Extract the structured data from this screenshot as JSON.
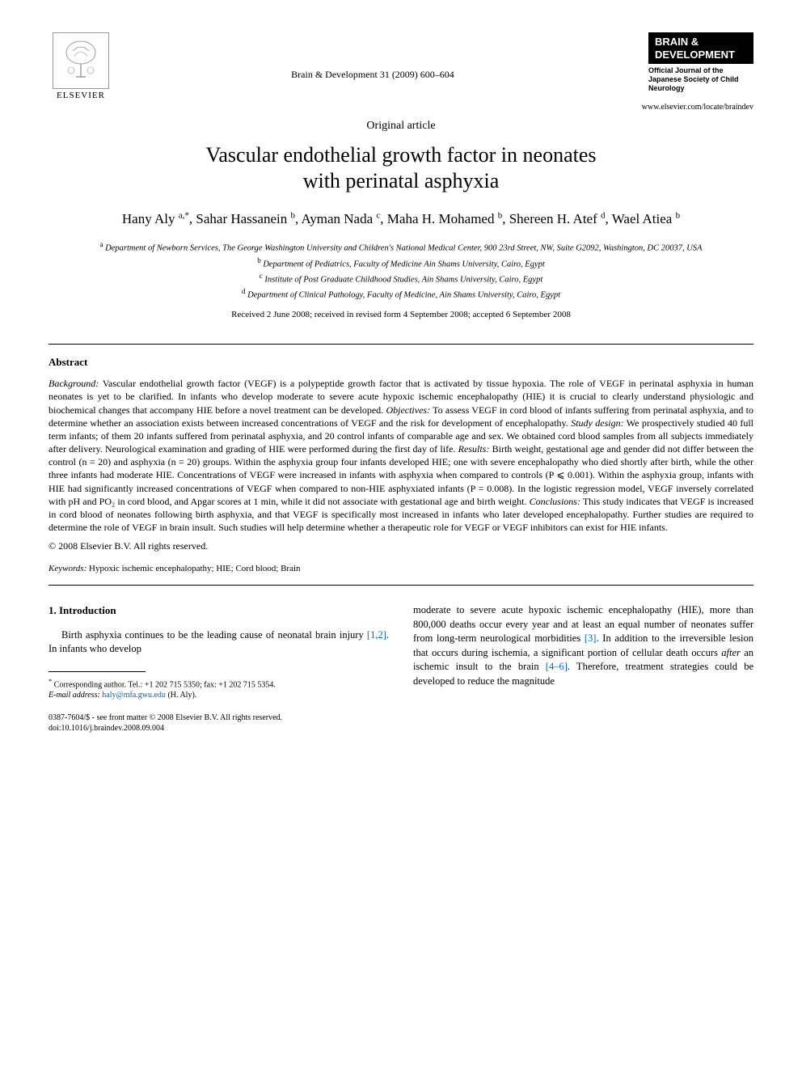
{
  "header": {
    "publisher_name": "ELSEVIER",
    "publisher_logo_alt": "Elsevier tree logo",
    "citation": "Brain & Development 31 (2009) 600–604",
    "journal_badge_line1": "BRAIN &",
    "journal_badge_line2": "DEVELOPMENT",
    "journal_subtitle": "Official Journal of the Japanese Society of Child Neurology",
    "journal_url": "www.elsevier.com/locate/braindev"
  },
  "article": {
    "type": "Original article",
    "title_line1": "Vascular endothelial growth factor in neonates",
    "title_line2": "with perinatal asphyxia",
    "authors_html": "Hany Aly <sup>a,*</sup>, Sahar Hassanein <sup>b</sup>, Ayman Nada <sup>c</sup>, Maha H. Mohamed <sup>b</sup>, Shereen H. Atef <sup>d</sup>, Wael Atiea <sup>b</sup>",
    "affiliations": [
      {
        "sup": "a",
        "text": "Department of Newborn Services, The George Washington University and Children's National Medical Center, 900 23rd Street, NW, Suite G2092, Washington, DC 20037, USA"
      },
      {
        "sup": "b",
        "text": "Department of Pediatrics, Faculty of Medicine Ain Shams University, Cairo, Egypt"
      },
      {
        "sup": "c",
        "text": "Institute of Post Graduate Childhood Studies, Ain Shams University, Cairo, Egypt"
      },
      {
        "sup": "d",
        "text": "Department of Clinical Pathology, Faculty of Medicine, Ain Shams University, Cairo, Egypt"
      }
    ],
    "dates": "Received 2 June 2008; received in revised form 4 September 2008; accepted 6 September 2008"
  },
  "abstract": {
    "heading": "Abstract",
    "sections": [
      {
        "label": "Background:",
        "text": " Vascular endothelial growth factor (VEGF) is a polypeptide growth factor that is activated by tissue hypoxia. The role of VEGF in perinatal asphyxia in human neonates is yet to be clarified. In infants who develop moderate to severe acute hypoxic ischemic encephalopathy (HIE) it is crucial to clearly understand physiologic and biochemical changes that accompany HIE before a novel treatment can be developed. "
      },
      {
        "label": "Objectives:",
        "text": " To assess VEGF in cord blood of infants suffering from perinatal asphyxia, and to determine whether an association exists between increased concentrations of VEGF and the risk for development of encephalopathy. "
      },
      {
        "label": "Study design:",
        "text": " We prospectively studied 40 full term infants; of them 20 infants suffered from perinatal asphyxia, and 20 control infants of comparable age and sex. We obtained cord blood samples from all subjects immediately after delivery. Neurological examination and grading of HIE were performed during the first day of life. "
      },
      {
        "label": "Results:",
        "text": " Birth weight, gestational age and gender did not differ between the control (n = 20) and asphyxia (n = 20) groups. Within the asphyxia group four infants developed HIE; one with severe encephalopathy who died shortly after birth, while the other three infants had moderate HIE. Concentrations of VEGF were increased in infants with asphyxia when compared to controls (P ⩽ 0.001). Within the asphyxia group, infants with HIE had significantly increased concentrations of VEGF when compared to non-HIE asphyxiated infants (P = 0.008). In the logistic regression model, VEGF inversely correlated with pH and PO₂ in cord blood, and Apgar scores at 1 min, while it did not associate with gestational age and birth weight. "
      },
      {
        "label": "Conclusions:",
        "text": " This study indicates that VEGF is increased in cord blood of neonates following birth asphyxia, and that VEGF is specifically most increased in infants who later developed encephalopathy. Further studies are required to determine the role of VEGF in brain insult. Such studies will help determine whether a therapeutic role for VEGF or VEGF inhibitors can exist for HIE infants."
      }
    ],
    "copyright": "© 2008 Elsevier B.V. All rights reserved.",
    "keywords_label": "Keywords:",
    "keywords": " Hypoxic ischemic encephalopathy; HIE; Cord blood; Brain"
  },
  "body": {
    "section_heading": "1. Introduction",
    "col1_para": "Birth asphyxia continues to be the leading cause of neonatal brain injury ",
    "col1_ref1": "[1,2]",
    "col1_para_after": ". In infants who develop",
    "col2_para1": "moderate to severe acute hypoxic ischemic encephalopathy (HIE), more than 800,000 deaths occur every year and at least an equal number of neonates suffer from long-term neurological morbidities ",
    "col2_ref1": "[3]",
    "col2_para1_after": ". In addition to the irreversible lesion that occurs during ischemia, a significant portion of cellular death occurs ",
    "col2_italic": "after",
    "col2_para1_after2": " an ischemic insult to the brain ",
    "col2_ref2": "[4–6]",
    "col2_para1_after3": ". Therefore, treatment strategies could be developed to reduce the magnitude"
  },
  "footnotes": {
    "corr": "Corresponding author. Tel.: +1 202 715 5350; fax: +1 202 715 5354.",
    "email_label": "E-mail address:",
    "email": "haly@mfa.gwu.edu",
    "email_suffix": " (H. Aly)."
  },
  "doi": {
    "line1": "0387-7604/$ - see front matter © 2008 Elsevier B.V. All rights reserved.",
    "line2": "doi:10.1016/j.braindev.2008.09.004"
  },
  "colors": {
    "link": "#0066cc",
    "text": "#000000",
    "background": "#ffffff",
    "badge_bg": "#000000",
    "badge_fg": "#ffffff"
  },
  "typography": {
    "title_fontsize_pt": 20,
    "authors_fontsize_pt": 13,
    "body_fontsize_pt": 10,
    "abstract_fontsize_pt": 9.5,
    "font_family": "Times/Georgia serif"
  }
}
